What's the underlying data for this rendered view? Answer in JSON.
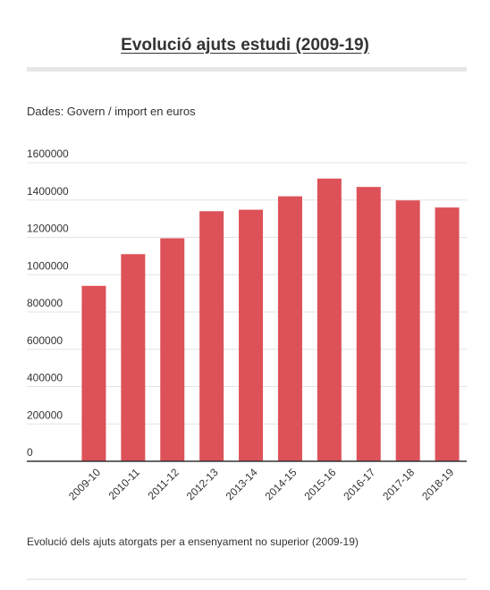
{
  "header": {
    "title": "Evolució ajuts estudi (2009-19)"
  },
  "source_note": "Dades: Govern / import en euros",
  "caption": "Evolució dels ajuts atorgats per a ensenyament no superior (2009-19)",
  "colors": {
    "bar": "#dd5158",
    "grid": "#e3e3e3",
    "axis": "#333333"
  },
  "chart_data": {
    "type": "bar",
    "title": "Evolució ajuts estudi (2009-19)",
    "xlabel": "",
    "ylabel": "",
    "categories": [
      "2009-10",
      "2010-11",
      "2011-12",
      "2012-13",
      "2013-14",
      "2014-15",
      "2015-16",
      "2016-17",
      "2017-18",
      "2018-19"
    ],
    "values": [
      940000,
      1110000,
      1195000,
      1340000,
      1348000,
      1420000,
      1515000,
      1470000,
      1398000,
      1360000
    ],
    "ylim": [
      0,
      1600000
    ],
    "yticks": [
      "0",
      "200000",
      "400000",
      "600000",
      "800000",
      "1000000",
      "1200000",
      "1400000",
      "1600000"
    ],
    "grid": true,
    "legend": "none"
  }
}
